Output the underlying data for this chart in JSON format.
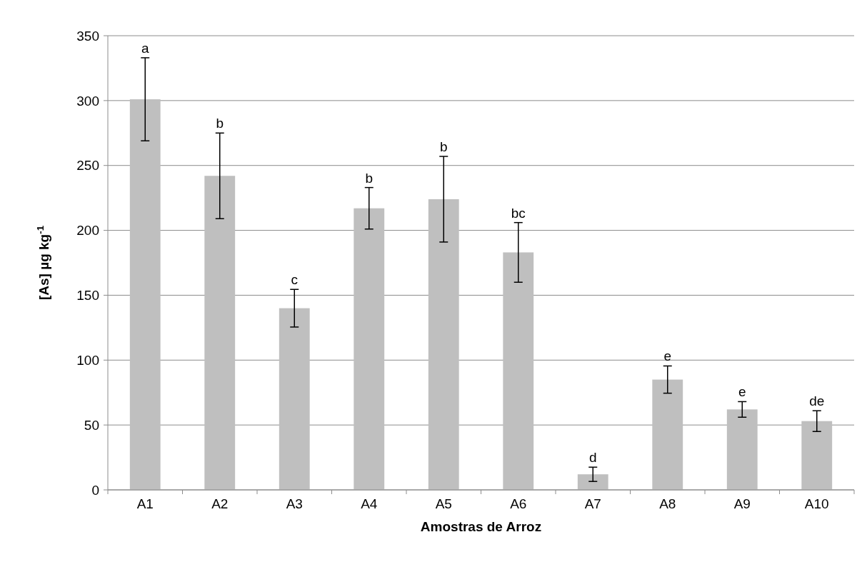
{
  "chart_data": {
    "type": "bar",
    "xlabel": "Amostras de Arroz",
    "ylabel": "[As] µg kg$^{-1}$",
    "categories": [
      "A1",
      "A2",
      "A3",
      "A4",
      "A5",
      "A6",
      "A7",
      "A8",
      "A9",
      "A10"
    ],
    "values": [
      301,
      242,
      140,
      217,
      224,
      183,
      12,
      85,
      62,
      53
    ],
    "errors": [
      32,
      33,
      14.5,
      16,
      33,
      23,
      5.5,
      10.5,
      6,
      8
    ],
    "color": "#bfbfbf",
    "ylim": [
      0,
      350
    ],
    "yticks": [
      0,
      50,
      100,
      150,
      200,
      250,
      300,
      350
    ],
    "grid": "y",
    "annotations": [
      {
        "text": "a",
        "x": "A1",
        "y": 333
      },
      {
        "text": "b",
        "x": "A2",
        "y": 275
      },
      {
        "text": "c",
        "x": "A3",
        "y": 154.5
      },
      {
        "text": "b",
        "x": "A4",
        "y": 233
      },
      {
        "text": "b",
        "x": "A5",
        "y": 257
      },
      {
        "text": "bc",
        "x": "A6",
        "y": 206
      },
      {
        "text": "d",
        "x": "A7",
        "y": 17.5
      },
      {
        "text": "e",
        "x": "A8",
        "y": 95.5
      },
      {
        "text": "e",
        "x": "A9",
        "y": 68
      },
      {
        "text": "de",
        "x": "A10",
        "y": 61
      }
    ]
  }
}
